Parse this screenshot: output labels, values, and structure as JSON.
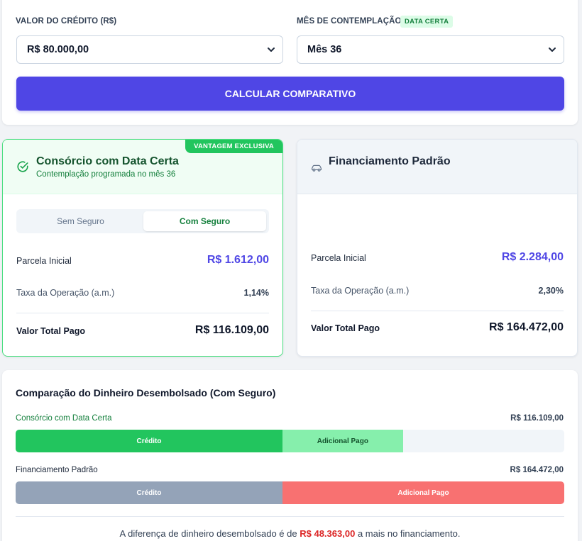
{
  "form": {
    "credit_label": "VALOR DO CRÉDITO (R$)",
    "credit_value": "R$ 80.000,00",
    "month_label": "MÊS DE CONTEMPLAÇÃO",
    "month_badge": "DATA CERTA",
    "month_value": "Mês 36",
    "calculate_label": "CALCULAR COMPARATIVO"
  },
  "consorcio": {
    "ribbon": "VANTAGEM EXCLUSIVA",
    "title": "Consórcio com Data Certa",
    "subtitle": "Contemplação programada no mês 36",
    "toggle": {
      "off_label": "Sem Seguro",
      "on_label": "Com Seguro"
    },
    "initial_label": "Parcela Inicial",
    "initial_value": "R$ 1.612,00",
    "rate_label": "Taxa da Operação (a.m.)",
    "rate_value": "1,14%",
    "total_label": "Valor Total Pago",
    "total_value": "R$ 116.109,00"
  },
  "financiamento": {
    "title": "Financiamento Padrão",
    "initial_label": "Parcela Inicial",
    "initial_value": "R$ 2.284,00",
    "rate_label": "Taxa da Operação (a.m.)",
    "rate_value": "2,30%",
    "total_label": "Valor Total Pago",
    "total_value": "R$ 164.472,00"
  },
  "comparison": {
    "title": "Comparação do Dinheiro Desembolsado (Com Seguro)",
    "scale_max": 164472,
    "bars": [
      {
        "label": "Consórcio com Data Certa",
        "total": "R$ 116.109,00",
        "credit_label": "Crédito",
        "extra_label": "Adicional Pago",
        "credit_amount": 80000,
        "extra_amount": 36109,
        "credit_color": "#22c55e",
        "extra_color": "#86efac",
        "label_color": "#15803d"
      },
      {
        "label": "Financiamento Padrão",
        "total": "R$ 164.472,00",
        "credit_label": "Crédito",
        "extra_label": "Adicional Pago",
        "credit_amount": 80000,
        "extra_amount": 84472,
        "credit_color": "#94a3b8",
        "extra_color": "#f87171",
        "label_color": "#1e293b"
      }
    ],
    "footer_prefix": "A diferença de dinheiro desembolsado é de",
    "footer_amount": "R$ 48.363,00",
    "footer_suffix": "a mais no financiamento."
  }
}
